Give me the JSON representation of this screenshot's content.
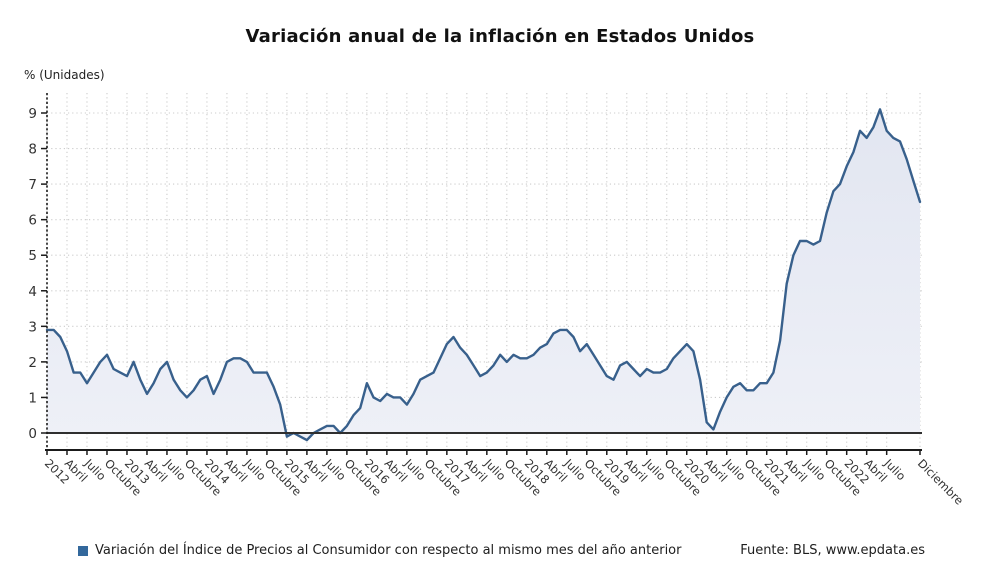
{
  "title": "Variación anual de la inflación en Estados Unidos",
  "y_axis_label": "% (Unidades)",
  "legend": {
    "label": "Variación del Índice de Precios al Consumidor con respecto al mismo mes del año anterior",
    "marker_color": "#33689c"
  },
  "source": "Fuente: BLS, www.epdata.es",
  "colors": {
    "line": "#38608c",
    "area_top": "#e2e6f1",
    "area_bottom": "#eef0f7",
    "grid": "#cccccc",
    "zero_line": "#2f2f2f",
    "axis": "#1a1a1a",
    "tick_text": "#333333"
  },
  "chart_data": {
    "type": "area",
    "title": "Variación anual de la inflación en Estados Unidos",
    "ylabel": "% (Unidades)",
    "xlabel": "",
    "ylim": [
      -0.5,
      9.5
    ],
    "y_ticks": [
      0,
      1,
      2,
      3,
      4,
      5,
      6,
      7,
      8,
      9
    ],
    "grid": true,
    "legend_position": "bottom-left",
    "x_range": [
      "Enero 2012",
      "Diciembre 2022"
    ],
    "x_tick_labels": [
      {
        "m": 0,
        "label": "2012"
      },
      {
        "m": 3,
        "label": "Abril"
      },
      {
        "m": 6,
        "label": "Julio"
      },
      {
        "m": 9,
        "label": "Octubre"
      },
      {
        "m": 12,
        "label": "2013"
      },
      {
        "m": 15,
        "label": "Abril"
      },
      {
        "m": 18,
        "label": "Julio"
      },
      {
        "m": 21,
        "label": "Octubre"
      },
      {
        "m": 24,
        "label": "2014"
      },
      {
        "m": 27,
        "label": "Abril"
      },
      {
        "m": 30,
        "label": "Julio"
      },
      {
        "m": 33,
        "label": "Octubre"
      },
      {
        "m": 36,
        "label": "2015"
      },
      {
        "m": 39,
        "label": "Abril"
      },
      {
        "m": 42,
        "label": "Julio"
      },
      {
        "m": 45,
        "label": "Octubre"
      },
      {
        "m": 48,
        "label": "2016"
      },
      {
        "m": 51,
        "label": "Abril"
      },
      {
        "m": 54,
        "label": "Julio"
      },
      {
        "m": 57,
        "label": "Octubre"
      },
      {
        "m": 60,
        "label": "2017"
      },
      {
        "m": 63,
        "label": "Abril"
      },
      {
        "m": 66,
        "label": "Julio"
      },
      {
        "m": 69,
        "label": "Octubre"
      },
      {
        "m": 72,
        "label": "2018"
      },
      {
        "m": 75,
        "label": "Abril"
      },
      {
        "m": 78,
        "label": "Julio"
      },
      {
        "m": 81,
        "label": "Octubre"
      },
      {
        "m": 84,
        "label": "2019"
      },
      {
        "m": 87,
        "label": "Abril"
      },
      {
        "m": 90,
        "label": "Julio"
      },
      {
        "m": 93,
        "label": "Octubre"
      },
      {
        "m": 96,
        "label": "2020"
      },
      {
        "m": 99,
        "label": "Abril"
      },
      {
        "m": 102,
        "label": "Julio"
      },
      {
        "m": 105,
        "label": "Octubre"
      },
      {
        "m": 108,
        "label": "2021"
      },
      {
        "m": 111,
        "label": "Abril"
      },
      {
        "m": 114,
        "label": "Julio"
      },
      {
        "m": 117,
        "label": "Octubre"
      },
      {
        "m": 120,
        "label": "2022"
      },
      {
        "m": 123,
        "label": "Abril"
      },
      {
        "m": 126,
        "label": "Julio"
      },
      {
        "m": 131,
        "label": "Diciembre"
      }
    ],
    "series": [
      {
        "name": "Variación del Índice de Precios al Consumidor con respecto al mismo mes del año anterior",
        "color": "#38608c",
        "values": [
          2.9,
          2.9,
          2.7,
          2.3,
          1.7,
          1.7,
          1.4,
          1.7,
          2.0,
          2.2,
          1.8,
          1.7,
          1.6,
          2.0,
          1.5,
          1.1,
          1.4,
          1.8,
          2.0,
          1.5,
          1.2,
          1.0,
          1.2,
          1.5,
          1.6,
          1.1,
          1.5,
          2.0,
          2.1,
          2.1,
          2.0,
          1.7,
          1.7,
          1.7,
          1.3,
          0.8,
          -0.1,
          0.0,
          -0.1,
          -0.2,
          0.0,
          0.1,
          0.2,
          0.2,
          0.0,
          0.2,
          0.5,
          0.7,
          1.4,
          1.0,
          0.9,
          1.1,
          1.0,
          1.0,
          0.8,
          1.1,
          1.5,
          1.6,
          1.7,
          2.1,
          2.5,
          2.7,
          2.4,
          2.2,
          1.9,
          1.6,
          1.7,
          1.9,
          2.2,
          2.0,
          2.2,
          2.1,
          2.1,
          2.2,
          2.4,
          2.5,
          2.8,
          2.9,
          2.9,
          2.7,
          2.3,
          2.5,
          2.2,
          1.9,
          1.6,
          1.5,
          1.9,
          2.0,
          1.8,
          1.6,
          1.8,
          1.7,
          1.7,
          1.8,
          2.1,
          2.3,
          2.5,
          2.3,
          1.5,
          0.3,
          0.1,
          0.6,
          1.0,
          1.3,
          1.4,
          1.2,
          1.2,
          1.4,
          1.4,
          1.7,
          2.6,
          4.2,
          5.0,
          5.4,
          5.4,
          5.3,
          5.4,
          6.2,
          6.8,
          7.0,
          7.5,
          7.9,
          8.5,
          8.3,
          8.6,
          9.1,
          8.5,
          8.3,
          8.2,
          7.7,
          7.1,
          6.5
        ]
      }
    ]
  }
}
